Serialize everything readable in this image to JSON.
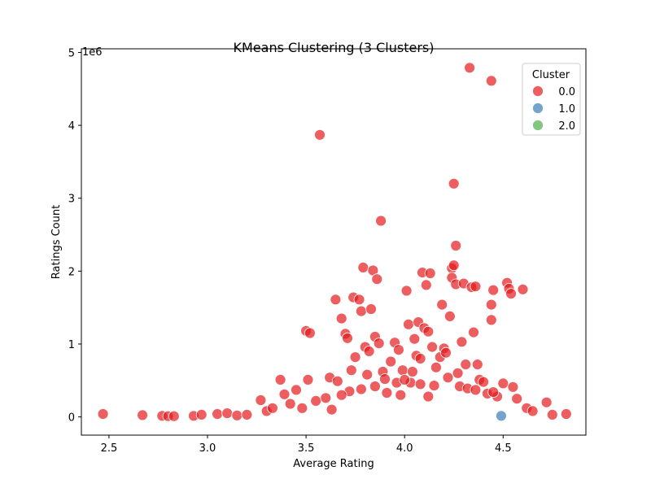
{
  "chart_data": {
    "type": "scatter",
    "title": "KMeans Clustering (3 Clusters)",
    "xlabel": "Average Rating",
    "ylabel": "Ratings Count",
    "y_scale_label": "1e6",
    "xlim": [
      2.36,
      4.92
    ],
    "ylim": [
      -250000,
      5050000
    ],
    "x_ticks": [
      {
        "v": 2.5,
        "label": "2.5"
      },
      {
        "v": 3.0,
        "label": "3.0"
      },
      {
        "v": 3.5,
        "label": "3.5"
      },
      {
        "v": 4.0,
        "label": "4.0"
      },
      {
        "v": 4.5,
        "label": "4.5"
      }
    ],
    "y_ticks": [
      {
        "v": 0,
        "label": "0"
      },
      {
        "v": 1000000,
        "label": "1"
      },
      {
        "v": 2000000,
        "label": "2"
      },
      {
        "v": 3000000,
        "label": "3"
      },
      {
        "v": 4000000,
        "label": "4"
      },
      {
        "v": 5000000,
        "label": "5"
      }
    ],
    "grid": false,
    "legend": {
      "title": "Cluster",
      "placement": "top-right",
      "entries": [
        {
          "label": "0.0",
          "color": "#e41a1c"
        },
        {
          "label": "1.0",
          "color": "#377eb8"
        },
        {
          "label": "2.0",
          "color": "#4daf4a"
        }
      ]
    },
    "series": [
      {
        "name": "0.0",
        "color": "#e41a1c",
        "points": [
          [
            2.47,
            40000
          ],
          [
            2.67,
            25000
          ],
          [
            2.77,
            15000
          ],
          [
            2.8,
            10000
          ],
          [
            2.83,
            10000
          ],
          [
            2.93,
            15000
          ],
          [
            2.97,
            30000
          ],
          [
            3.05,
            40000
          ],
          [
            3.1,
            50000
          ],
          [
            3.15,
            20000
          ],
          [
            3.2,
            30000
          ],
          [
            3.27,
            230000
          ],
          [
            3.3,
            80000
          ],
          [
            3.33,
            120000
          ],
          [
            3.37,
            510000
          ],
          [
            3.39,
            310000
          ],
          [
            3.42,
            180000
          ],
          [
            3.45,
            370000
          ],
          [
            3.48,
            120000
          ],
          [
            3.5,
            1180000
          ],
          [
            3.52,
            1150000
          ],
          [
            3.51,
            510000
          ],
          [
            3.55,
            220000
          ],
          [
            3.57,
            3870000
          ],
          [
            3.6,
            260000
          ],
          [
            3.62,
            540000
          ],
          [
            3.63,
            100000
          ],
          [
            3.65,
            1610000
          ],
          [
            3.66,
            490000
          ],
          [
            3.68,
            1350000
          ],
          [
            3.7,
            1140000
          ],
          [
            3.71,
            1080000
          ],
          [
            3.73,
            640000
          ],
          [
            3.74,
            1640000
          ],
          [
            3.75,
            820000
          ],
          [
            3.77,
            1610000
          ],
          [
            3.78,
            1450000
          ],
          [
            3.79,
            2050000
          ],
          [
            3.8,
            960000
          ],
          [
            3.81,
            580000
          ],
          [
            3.82,
            900000
          ],
          [
            3.83,
            1480000
          ],
          [
            3.84,
            2010000
          ],
          [
            3.85,
            1100000
          ],
          [
            3.86,
            1890000
          ],
          [
            3.87,
            1010000
          ],
          [
            3.88,
            2690000
          ],
          [
            3.89,
            620000
          ],
          [
            3.91,
            330000
          ],
          [
            3.93,
            760000
          ],
          [
            3.95,
            1020000
          ],
          [
            3.97,
            920000
          ],
          [
            3.99,
            640000
          ],
          [
            4.01,
            1730000
          ],
          [
            4.02,
            1270000
          ],
          [
            4.03,
            470000
          ],
          [
            4.05,
            1070000
          ],
          [
            4.06,
            840000
          ],
          [
            4.07,
            1300000
          ],
          [
            4.08,
            800000
          ],
          [
            4.09,
            1980000
          ],
          [
            4.1,
            1220000
          ],
          [
            4.11,
            1810000
          ],
          [
            4.12,
            1170000
          ],
          [
            4.13,
            1970000
          ],
          [
            4.14,
            960000
          ],
          [
            4.16,
            680000
          ],
          [
            4.18,
            820000
          ],
          [
            4.19,
            1540000
          ],
          [
            4.2,
            940000
          ],
          [
            4.21,
            880000
          ],
          [
            4.22,
            540000
          ],
          [
            4.23,
            1380000
          ],
          [
            4.24,
            2040000
          ],
          [
            4.25,
            2080000
          ],
          [
            4.25,
            3200000
          ],
          [
            4.24,
            1910000
          ],
          [
            4.26,
            2350000
          ],
          [
            4.26,
            1820000
          ],
          [
            4.27,
            600000
          ],
          [
            4.29,
            1030000
          ],
          [
            4.3,
            1830000
          ],
          [
            4.31,
            720000
          ],
          [
            4.33,
            4790000
          ],
          [
            4.34,
            1780000
          ],
          [
            4.35,
            1160000
          ],
          [
            4.36,
            1790000
          ],
          [
            4.37,
            720000
          ],
          [
            4.38,
            510000
          ],
          [
            4.4,
            480000
          ],
          [
            4.42,
            320000
          ],
          [
            4.44,
            4610000
          ],
          [
            4.44,
            1540000
          ],
          [
            4.44,
            1330000
          ],
          [
            4.45,
            1740000
          ],
          [
            4.47,
            280000
          ],
          [
            4.5,
            460000
          ],
          [
            4.52,
            1840000
          ],
          [
            4.53,
            1760000
          ],
          [
            4.54,
            1690000
          ],
          [
            4.55,
            410000
          ],
          [
            4.57,
            250000
          ],
          [
            4.6,
            1750000
          ],
          [
            4.62,
            120000
          ],
          [
            4.65,
            80000
          ],
          [
            4.72,
            200000
          ],
          [
            4.75,
            30000
          ],
          [
            4.82,
            40000
          ],
          [
            3.9,
            520000
          ],
          [
            3.96,
            470000
          ],
          [
            4.0,
            510000
          ],
          [
            4.04,
            620000
          ],
          [
            4.08,
            450000
          ],
          [
            4.15,
            430000
          ],
          [
            3.85,
            420000
          ],
          [
            3.78,
            380000
          ],
          [
            3.72,
            350000
          ],
          [
            4.28,
            420000
          ],
          [
            4.32,
            390000
          ],
          [
            4.36,
            370000
          ],
          [
            3.68,
            300000
          ],
          [
            4.45,
            340000
          ],
          [
            3.98,
            300000
          ],
          [
            4.12,
            280000
          ]
        ]
      },
      {
        "name": "1.0",
        "color": "#377eb8",
        "points": [
          [
            4.49,
            15000
          ]
        ]
      },
      {
        "name": "2.0",
        "color": "#4daf4a",
        "points": []
      }
    ]
  }
}
